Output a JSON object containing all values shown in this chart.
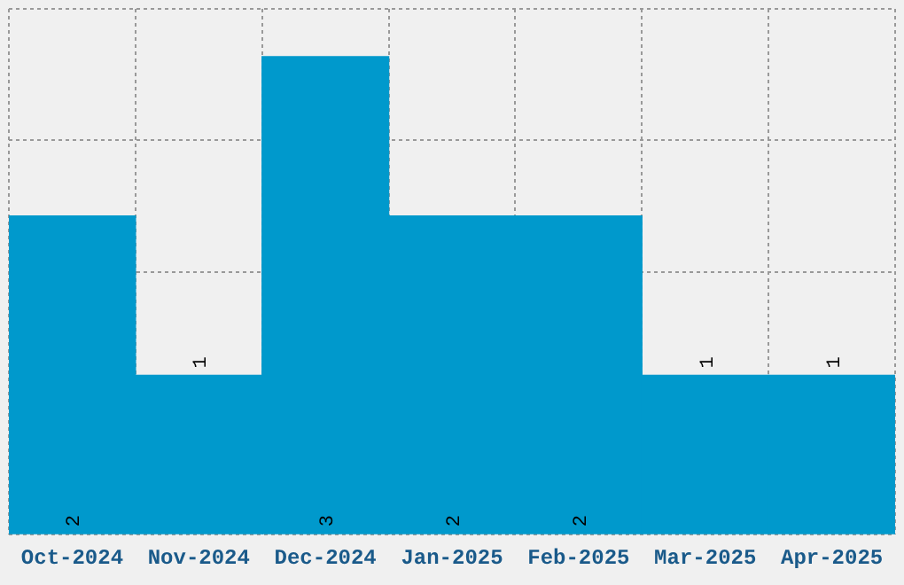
{
  "chart_data": {
    "type": "bar",
    "categories": [
      "Oct-2024",
      "Nov-2024",
      "Dec-2024",
      "Jan-2025",
      "Feb-2025",
      "Mar-2025",
      "Apr-2025"
    ],
    "values": [
      2,
      1,
      3,
      2,
      2,
      1,
      1
    ],
    "color": "#0099cc",
    "data_labels": true,
    "tick_labels": "x",
    "grid": true,
    "legend": false
  }
}
